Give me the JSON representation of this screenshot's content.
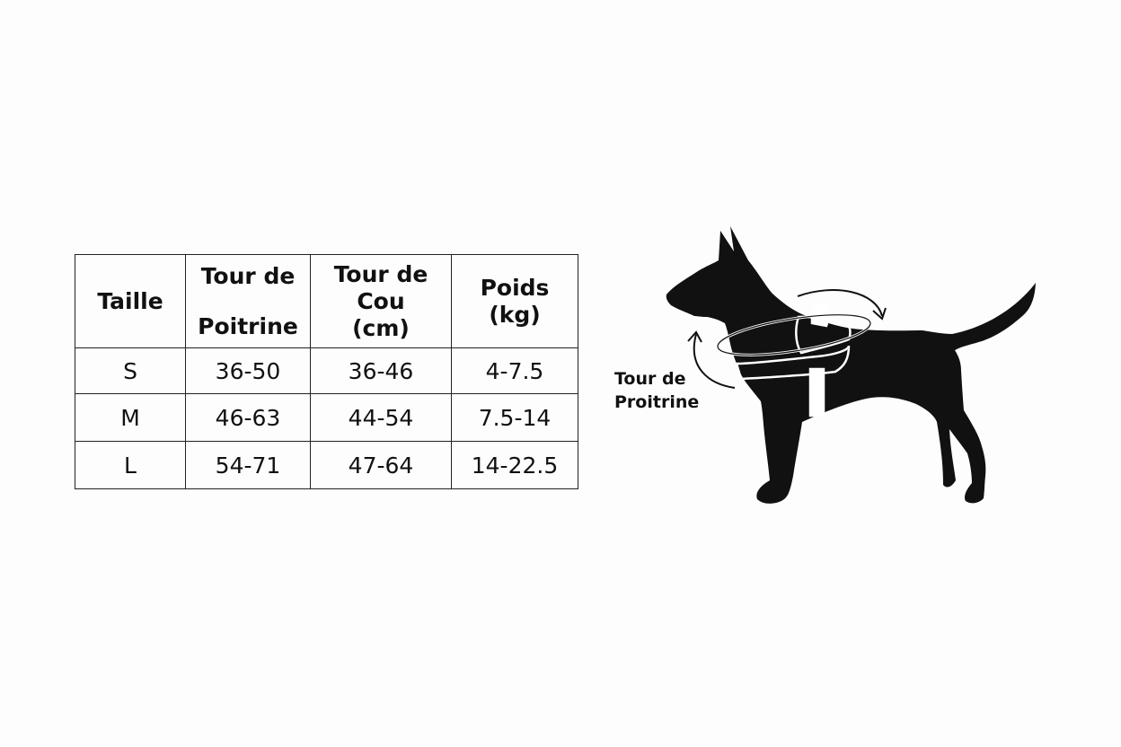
{
  "size_table": {
    "headers": [
      [
        "Taille"
      ],
      [
        "Tour de",
        "Poitrine"
      ],
      [
        "Tour de",
        "Cou",
        "(cm)"
      ],
      [
        "Poids",
        "(kg)"
      ]
    ],
    "rows": [
      [
        "S",
        "36-50",
        "36-46",
        "4-7.5"
      ],
      [
        "M",
        "46-63",
        "44-54",
        "7.5-14"
      ],
      [
        "L",
        "54-71",
        "47-64",
        "14-22.5"
      ]
    ]
  },
  "illustration": {
    "label_line1": "Tour de",
    "label_line2": "Proitrine",
    "silhouette_color": "#111111",
    "harness_color": "#ffffff"
  }
}
